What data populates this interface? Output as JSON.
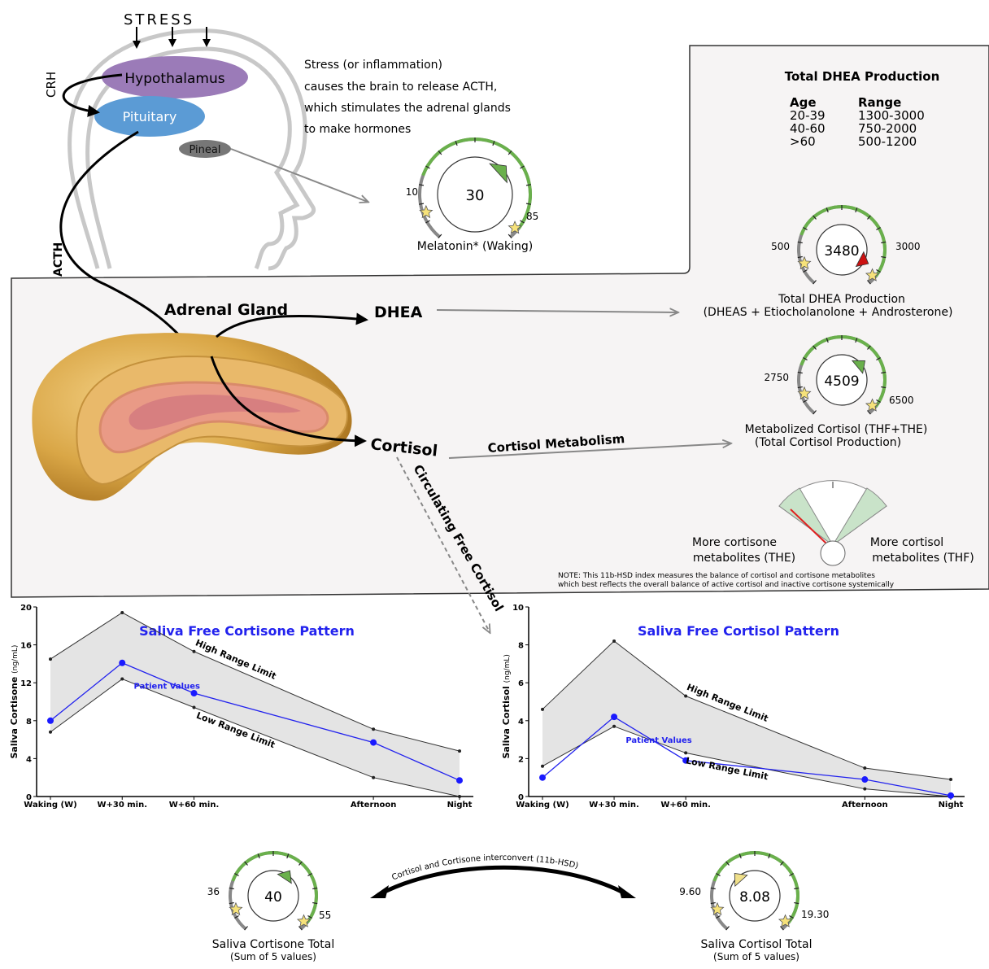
{
  "brain": {
    "stress_label": "STRESS",
    "hypothalamus_label": "Hypothalamus",
    "pituitary_label": "Pituitary",
    "pineal_label": "Pineal",
    "crh_label": "CRH",
    "acth_label": "ACTH",
    "description_lines": [
      "Stress (or inflammation)",
      "causes the brain to release ACTH,",
      "which stimulates the adrenal glands",
      "to make hormones"
    ]
  },
  "dhea_table": {
    "title": "Total DHEA Production",
    "col_age": "Age",
    "col_range": "Range",
    "rows": [
      {
        "age": "20-39",
        "range": "1300-3000"
      },
      {
        "age": "40-60",
        "range": "750-2000"
      },
      {
        "age": ">60",
        "range": "500-1200"
      }
    ]
  },
  "adrenal": {
    "gland_label": "Adrenal Gland",
    "dhea_label": "DHEA",
    "cortisol_label": "Cortisol",
    "metabolism_label": "Cortisol Metabolism",
    "circulating_label": "Circulating Free Cortisol"
  },
  "gauges": {
    "melatonin": {
      "value": "30",
      "low": "10",
      "high": "85",
      "caption": "Melatonin* (Waking)",
      "needle_color": "#6ab04c"
    },
    "dhea": {
      "value": "3480",
      "low": "500",
      "high": "3000",
      "caption": "Total DHEA Production",
      "subcaption": "(DHEAS + Etiocholanolone + Androsterone)",
      "needle_color": "#cc1111"
    },
    "metabolized_cortisol": {
      "value": "4509",
      "low": "2750",
      "high": "6500",
      "caption": "Metabolized Cortisol (THF+THE)",
      "subcaption": "(Total Cortisol Production)",
      "needle_color": "#6ab04c"
    },
    "cortisone_total": {
      "value": "40",
      "low": "36",
      "high": "55",
      "caption": "Saliva Cortisone Total",
      "subcaption": "(Sum of 5 values)",
      "needle_color": "#6ab04c"
    },
    "cortisol_total": {
      "value": "8.08",
      "low": "9.60",
      "high": "19.30",
      "caption": "Saliva Cortisol Total",
      "subcaption": "(Sum of 5 values)",
      "needle_color": "#f0e08a"
    }
  },
  "hsd": {
    "left_label": "More cortisone metabolites (THE)",
    "left_line1": "More cortisone",
    "left_line2": "metabolites (THE)",
    "right_line1": "More cortisol",
    "right_line2": "metabolites (THF)",
    "note_line1": "NOTE: This 11b-HSD index measures the balance of cortisol and cortisone metabolites",
    "note_line2": "which best reflects the overall balance of active cortisol and inactive cortisone systemically",
    "interconvert_label": "Cortisol and Cortisone interconvert (11b-HSD)"
  },
  "chart_data": [
    {
      "type": "line",
      "title": "Saliva Free Cortisone Pattern",
      "ylabel": "Saliva Cortisone",
      "yunit": "(ng/mL)",
      "categories": [
        "Waking (W)",
        "W+30 min.",
        "W+60 min.",
        "Afternoon",
        "Night"
      ],
      "x": [
        0,
        1,
        2,
        4.5,
        5.7
      ],
      "ylim": [
        0,
        20
      ],
      "yticks": [
        0,
        4,
        8,
        12,
        16,
        20
      ],
      "series": [
        {
          "name": "High Range Limit",
          "values": [
            14.5,
            19.4,
            15.3,
            7.1,
            4.8
          ]
        },
        {
          "name": "Low Range Limit",
          "values": [
            6.8,
            12.4,
            9.4,
            2.0,
            0.0
          ]
        },
        {
          "name": "Patient Values",
          "values": [
            8.0,
            14.1,
            10.9,
            5.7,
            1.7
          ]
        }
      ]
    },
    {
      "type": "line",
      "title": "Saliva Free Cortisol Pattern",
      "ylabel": "Saliva Cortisol",
      "yunit": "(ng/mL)",
      "categories": [
        "Waking (W)",
        "W+30 min.",
        "W+60 min.",
        "Afternoon",
        "Night"
      ],
      "x": [
        0,
        1,
        2,
        4.5,
        5.7
      ],
      "ylim": [
        0,
        10
      ],
      "yticks": [
        0,
        2,
        4,
        6,
        8,
        10
      ],
      "series": [
        {
          "name": "High Range Limit",
          "values": [
            4.6,
            8.2,
            5.3,
            1.5,
            0.9
          ]
        },
        {
          "name": "Low Range Limit",
          "values": [
            1.6,
            3.7,
            2.3,
            0.4,
            0.0
          ]
        },
        {
          "name": "Patient Values",
          "values": [
            1.0,
            4.2,
            1.9,
            0.9,
            0.05
          ]
        }
      ]
    }
  ]
}
